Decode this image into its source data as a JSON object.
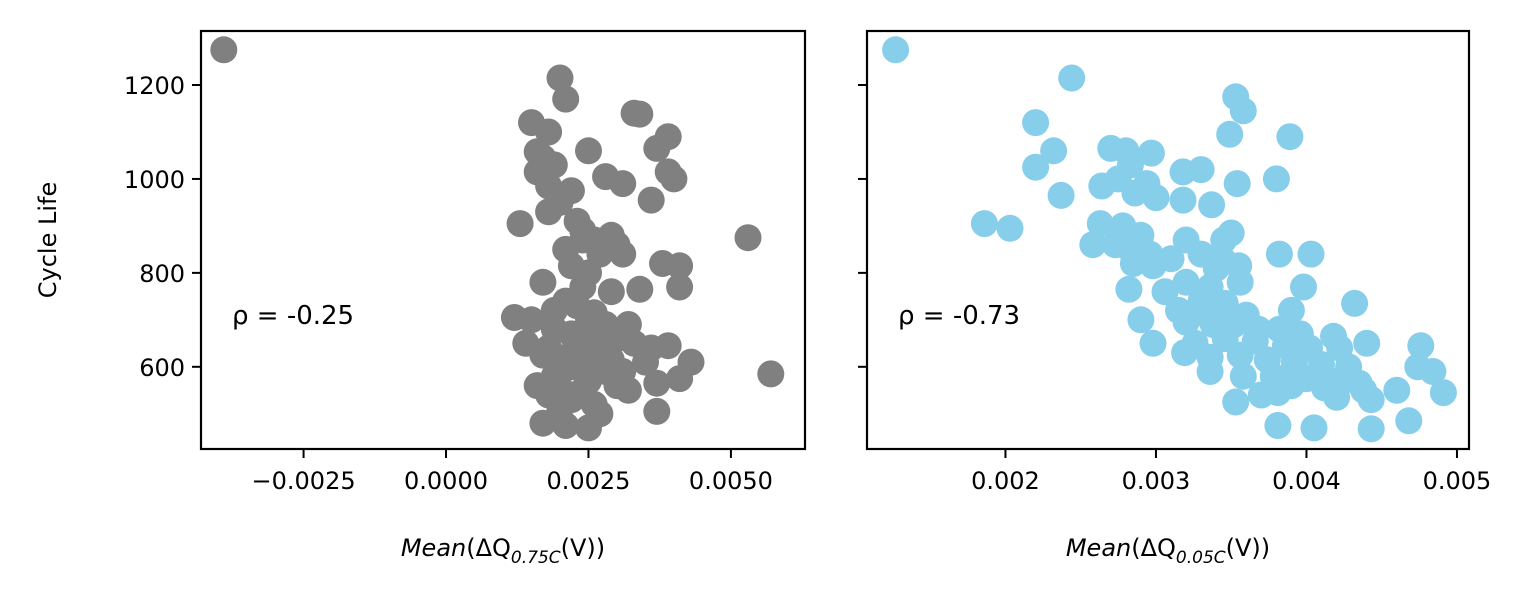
{
  "chart_data": [
    {
      "type": "scatter",
      "color": "#808080",
      "xlabel": {
        "main": "Mean",
        "open": "(ΔQ",
        "sub": "0.75C",
        "close": "(V))"
      },
      "ylabel": "Cycle Life",
      "xlim": [
        -0.0043,
        0.0063
      ],
      "ylim": [
        425,
        1315
      ],
      "xticks": [
        -0.0025,
        0.0,
        0.0025,
        0.005
      ],
      "xtick_labels": [
        "−0.0025",
        "0.0000",
        "0.0025",
        "0.0050"
      ],
      "yticks": [
        600,
        800,
        1000,
        1200
      ],
      "ytick_labels": [
        "600",
        "800",
        "1000",
        "1200"
      ],
      "annotation": "ρ = -0.25",
      "x": [
        -0.0039,
        0.002,
        0.0021,
        0.0015,
        0.0018,
        0.0033,
        0.0034,
        0.0039,
        0.0037,
        0.0025,
        0.0016,
        0.0017,
        0.0019,
        0.0039,
        0.0028,
        0.0031,
        0.004,
        0.0016,
        0.0018,
        0.0022,
        0.002,
        0.0036,
        0.0013,
        0.0018,
        0.0023,
        0.0024,
        0.0026,
        0.0029,
        0.003,
        0.0053,
        0.0021,
        0.0027,
        0.0031,
        0.0022,
        0.0025,
        0.0038,
        0.0041,
        0.0017,
        0.0041,
        0.0024,
        0.0029,
        0.0034,
        0.0021,
        0.0023,
        0.0026,
        0.0012,
        0.0015,
        0.0025,
        0.0028,
        0.0032,
        0.0019,
        0.0022,
        0.0027,
        0.003,
        0.0014,
        0.0018,
        0.0024,
        0.0033,
        0.0036,
        0.0039,
        0.0017,
        0.0021,
        0.0026,
        0.0029,
        0.0035,
        0.0043,
        0.0022,
        0.0028,
        0.0031,
        0.0057,
        0.0041,
        0.0019,
        0.0025,
        0.0037,
        0.003,
        0.002,
        0.0024,
        0.0032,
        0.0018,
        0.0022,
        0.0026,
        0.002,
        0.0037,
        0.0017,
        0.0021,
        0.0025,
        0.0027,
        0.0023,
        0.0019,
        0.0028,
        0.0016,
        0.0024
      ],
      "y": [
        1275,
        1215,
        1170,
        1120,
        1100,
        1140,
        1138,
        1090,
        1065,
        1060,
        1058,
        1045,
        1030,
        1015,
        1005,
        990,
        1000,
        1015,
        985,
        975,
        950,
        955,
        905,
        930,
        910,
        890,
        870,
        880,
        860,
        875,
        850,
        840,
        840,
        815,
        800,
        820,
        815,
        780,
        770,
        770,
        760,
        765,
        740,
        730,
        715,
        705,
        700,
        700,
        690,
        690,
        680,
        670,
        665,
        660,
        650,
        640,
        645,
        650,
        640,
        645,
        625,
        620,
        610,
        615,
        610,
        610,
        600,
        590,
        590,
        585,
        575,
        580,
        570,
        565,
        560,
        555,
        550,
        550,
        540,
        530,
        520,
        510,
        505,
        480,
        475,
        470,
        500,
        600,
        720,
        660,
        560,
        870
      ]
    },
    {
      "type": "scatter",
      "color": "#87ceeb",
      "xlabel": {
        "main": "Mean",
        "open": "(ΔQ",
        "sub": "0.05C",
        "close": "(V))"
      },
      "ylabel": "",
      "xlim": [
        0.00108,
        0.00508
      ],
      "ylim": [
        425,
        1315
      ],
      "xticks": [
        0.002,
        0.003,
        0.004,
        0.005
      ],
      "xtick_labels": [
        "0.002",
        "0.003",
        "0.004",
        "0.005"
      ],
      "yticks": [
        600,
        800,
        1000,
        1200
      ],
      "ytick_labels": [
        "",
        "",
        "",
        ""
      ],
      "annotation": "ρ = -0.73",
      "x": [
        0.00127,
        0.00244,
        0.00353,
        0.00358,
        0.0022,
        0.00349,
        0.00389,
        0.00232,
        0.0027,
        0.0028,
        0.00297,
        0.0022,
        0.00283,
        0.00318,
        0.0033,
        0.00264,
        0.00275,
        0.00294,
        0.00354,
        0.0038,
        0.00237,
        0.00286,
        0.003,
        0.00318,
        0.00337,
        0.00186,
        0.00203,
        0.00263,
        0.00278,
        0.00258,
        0.0029,
        0.0032,
        0.00345,
        0.0035,
        0.00273,
        0.00283,
        0.00296,
        0.0031,
        0.0033,
        0.00344,
        0.00285,
        0.00298,
        0.0034,
        0.00355,
        0.00382,
        0.00403,
        0.00282,
        0.00306,
        0.0032,
        0.00336,
        0.00356,
        0.00398,
        0.0033,
        0.00346,
        0.00315,
        0.0033,
        0.0036,
        0.0039,
        0.00432,
        0.0029,
        0.0032,
        0.00338,
        0.00352,
        0.00368,
        0.00382,
        0.00396,
        0.00418,
        0.00298,
        0.00326,
        0.00346,
        0.00366,
        0.00386,
        0.00402,
        0.00422,
        0.0044,
        0.00319,
        0.00336,
        0.00356,
        0.00374,
        0.00392,
        0.0041,
        0.00428,
        0.00476,
        0.00336,
        0.00358,
        0.00378,
        0.004,
        0.00421,
        0.00435,
        0.00474,
        0.00484,
        0.0039,
        0.00412,
        0.00438,
        0.0046,
        0.00491,
        0.00353,
        0.0037,
        0.00381,
        0.0042,
        0.00443,
        0.00381,
        0.00405,
        0.00443,
        0.00468
      ],
      "y": [
        1275,
        1215,
        1175,
        1145,
        1120,
        1095,
        1090,
        1060,
        1065,
        1060,
        1055,
        1025,
        1030,
        1015,
        1020,
        985,
        1000,
        990,
        990,
        1000,
        965,
        970,
        960,
        955,
        945,
        905,
        895,
        905,
        900,
        860,
        880,
        870,
        870,
        885,
        860,
        850,
        840,
        830,
        840,
        830,
        820,
        815,
        810,
        815,
        840,
        840,
        765,
        760,
        780,
        770,
        780,
        770,
        740,
        735,
        720,
        715,
        710,
        720,
        735,
        700,
        695,
        690,
        690,
        680,
        680,
        670,
        665,
        650,
        650,
        660,
        655,
        645,
        640,
        640,
        650,
        630,
        620,
        625,
        615,
        610,
        605,
        600,
        645,
        590,
        580,
        580,
        575,
        570,
        565,
        600,
        590,
        560,
        555,
        550,
        550,
        545,
        525,
        540,
        545,
        535,
        530,
        475,
        470,
        468,
        485
      ]
    }
  ]
}
